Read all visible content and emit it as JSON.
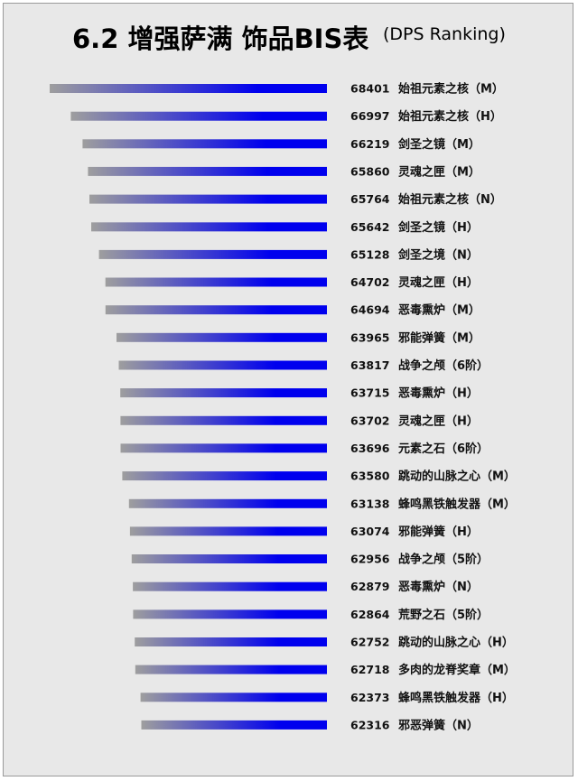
{
  "header": {
    "title": "6.2 增强萨满 饰品BIS表",
    "subtitle": "(DPS Ranking)"
  },
  "colors": {
    "bar_start": "#9e9e9e",
    "bar_end": "#0000ee",
    "background": "#e8e8e8"
  },
  "chart_data": {
    "type": "bar",
    "orientation": "horizontal",
    "title": "6.2 增强萨满 饰品BIS表",
    "subtitle": "(DPS Ranking)",
    "categories": [
      "始祖元素之核（M）",
      "始祖元素之核（H）",
      "剑圣之镜（M）",
      "灵魂之匣（M）",
      "始祖元素之核（N）",
      "剑圣之镜（H）",
      "剑圣之境（N）",
      "灵魂之匣（H）",
      "恶毒熏炉（M）",
      "邪能弹簧（M）",
      "战争之颅（6阶）",
      "恶毒熏炉（H）",
      "灵魂之匣（H）",
      "元素之石（6阶）",
      "跳动的山脉之心（M）",
      "蜂鸣黑铁触发器（M）",
      "邪能弹簧（H）",
      "战争之颅（5阶）",
      "恶毒熏炉（N）",
      "荒野之石（5阶）",
      "跳动的山脉之心（H）",
      "多肉的龙脊奖章（M）",
      "蜂鸣黑铁触发器（H）",
      "邪恶弹簧（N）"
    ],
    "values": [
      68401,
      66997,
      66219,
      65860,
      65764,
      65642,
      65128,
      64702,
      64694,
      63965,
      63817,
      63715,
      63702,
      63696,
      63580,
      63138,
      63074,
      62956,
      62879,
      62864,
      62752,
      62718,
      62373,
      62316
    ],
    "data_labels": [
      "68401",
      "66997",
      "66219",
      "65860",
      "65764",
      "65642",
      "65128",
      "64702",
      "64694",
      "63965",
      "63817",
      "63715",
      "63702",
      "63696",
      "63580",
      "63138",
      "63074",
      "62956",
      "62879",
      "62864",
      "62752",
      "62718",
      "62373",
      "62316"
    ],
    "xlim": [
      50000,
      68401
    ],
    "grid": false,
    "legend": "none"
  }
}
